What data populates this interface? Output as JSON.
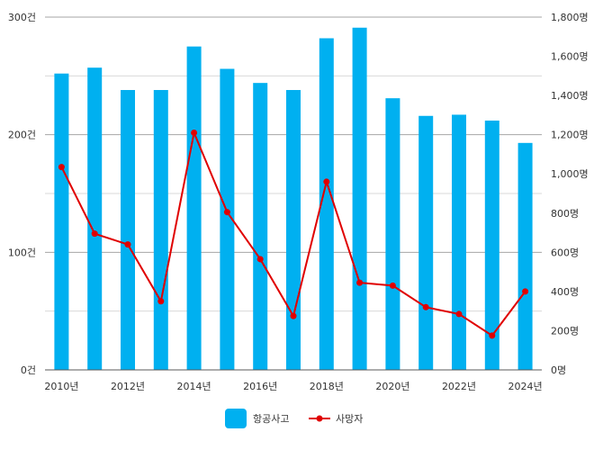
{
  "chart_data": {
    "type": "bar",
    "categories": [
      "2010년",
      "2011년",
      "2012년",
      "2013년",
      "2014년",
      "2015년",
      "2016년",
      "2017년",
      "2018년",
      "2019년",
      "2020년",
      "2021년",
      "2022년",
      "2023년",
      "2024년"
    ],
    "x_tick_labels": [
      "2010년",
      "2012년",
      "2014년",
      "2016년",
      "2018년",
      "2020년",
      "2022년",
      "2024년"
    ],
    "series": [
      {
        "name": "항공사고",
        "type": "bar",
        "axis": "left",
        "color": "#00B0F0",
        "values": [
          252,
          257,
          238,
          238,
          275,
          256,
          244,
          238,
          282,
          291,
          231,
          216,
          217,
          212,
          193
        ]
      },
      {
        "name": "사망자",
        "type": "line",
        "axis": "right",
        "color": "#E00000",
        "values": [
          1035,
          695,
          640,
          350,
          1210,
          805,
          565,
          275,
          960,
          445,
          430,
          320,
          285,
          175,
          400
        ]
      }
    ],
    "y_left": {
      "min": 0,
      "max": 300,
      "ticks": [
        0,
        100,
        200,
        300
      ],
      "tick_labels": [
        "0건",
        "100건",
        "200건",
        "300건"
      ]
    },
    "y_right": {
      "min": 0,
      "max": 1800,
      "ticks": [
        0,
        200,
        400,
        600,
        800,
        1000,
        1200,
        1400,
        1600,
        1800
      ],
      "tick_labels": [
        "0명",
        "200명",
        "400명",
        "600명",
        "800명",
        "1,000명",
        "1,200명",
        "1,400명",
        "1,600명",
        "1,800명"
      ]
    },
    "grid": true,
    "legend_position": "bottom"
  }
}
